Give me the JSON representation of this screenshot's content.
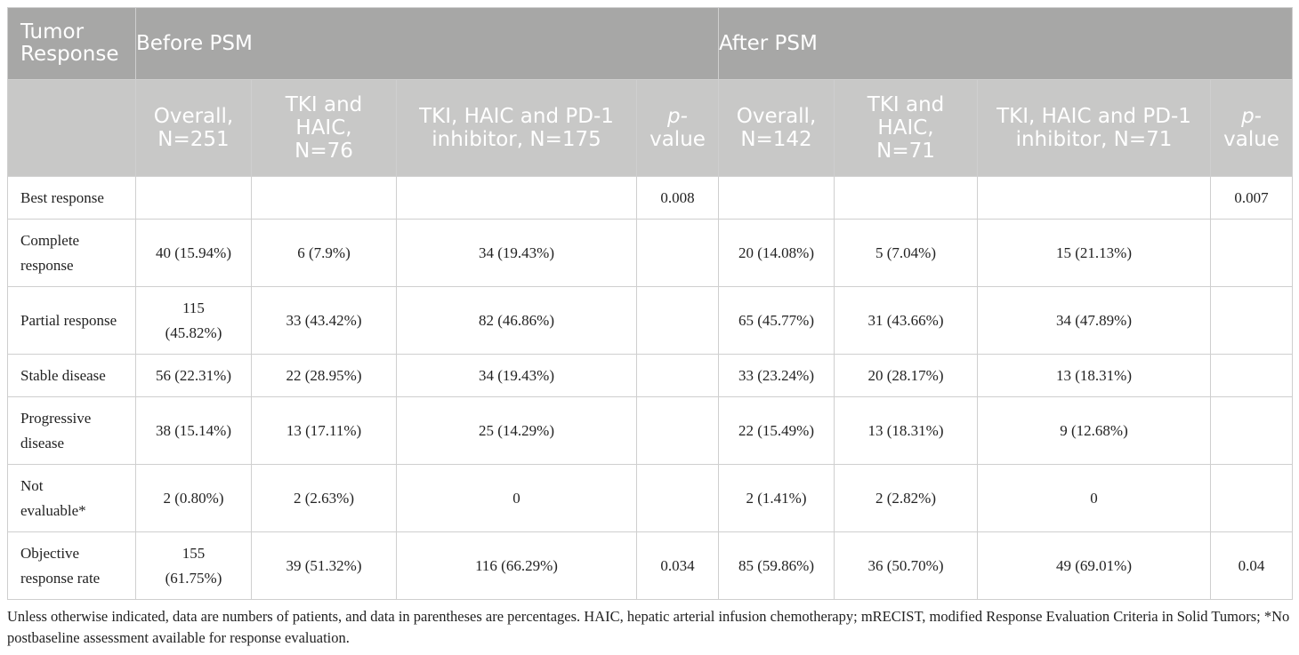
{
  "header": {
    "corner_label": "Tumor Response",
    "group_before": "Before PSM",
    "group_after": "After PSM",
    "cols_before": {
      "overall": "Overall, N=251",
      "tki_haic": "TKI and HAIC, N=76",
      "tki_haic_pd1": "TKI, HAIC and PD-1 inhibitor, N=175",
      "p_italic": "p-",
      "p_rest": "value"
    },
    "cols_after": {
      "overall": "Overall, N=142",
      "tki_haic": "TKI and HAIC, N=71",
      "tki_haic_pd1": "TKI, HAIC and PD-1 inhibitor, N=71",
      "p_italic": "p-",
      "p_rest": "value"
    }
  },
  "rows": [
    {
      "label": "Best response",
      "b_overall": "",
      "b_tki": "",
      "b_pd1": "",
      "b_p": "0.008",
      "a_overall": "",
      "a_tki": "",
      "a_pd1": "",
      "a_p": "0.007"
    },
    {
      "label": "Complete response",
      "b_overall": "40 (15.94%)",
      "b_tki": "6 (7.9%)",
      "b_pd1": "34 (19.43%)",
      "b_p": "",
      "a_overall": "20 (14.08%)",
      "a_tki": "5 (7.04%)",
      "a_pd1": "15 (21.13%)",
      "a_p": ""
    },
    {
      "label": "Partial response",
      "b_overall": "115 (45.82%)",
      "b_tki": "33 (43.42%)",
      "b_pd1": "82 (46.86%)",
      "b_p": "",
      "a_overall": "65 (45.77%)",
      "a_tki": "31 (43.66%)",
      "a_pd1": "34 (47.89%)",
      "a_p": ""
    },
    {
      "label": "Stable disease",
      "b_overall": "56 (22.31%)",
      "b_tki": "22 (28.95%)",
      "b_pd1": "34 (19.43%)",
      "b_p": "",
      "a_overall": "33 (23.24%)",
      "a_tki": "20 (28.17%)",
      "a_pd1": "13 (18.31%)",
      "a_p": ""
    },
    {
      "label": "Progressive disease",
      "b_overall": "38 (15.14%)",
      "b_tki": "13 (17.11%)",
      "b_pd1": "25 (14.29%)",
      "b_p": "",
      "a_overall": "22 (15.49%)",
      "a_tki": "13 (18.31%)",
      "a_pd1": "9 (12.68%)",
      "a_p": ""
    },
    {
      "label": "Not evaluable*",
      "b_overall": "2 (0.80%)",
      "b_tki": "2 (2.63%)",
      "b_pd1": "0",
      "b_p": "",
      "a_overall": "2 (1.41%)",
      "a_tki": "2 (2.82%)",
      "a_pd1": "0",
      "a_p": ""
    },
    {
      "label": "Objective response rate",
      "b_overall": "155 (61.75%)",
      "b_tki": "39 (51.32%)",
      "b_pd1": "116 (66.29%)",
      "b_p": "0.034",
      "a_overall": "85 (59.86%)",
      "a_tki": "36 (50.70%)",
      "a_pd1": "49 (69.01%)",
      "a_p": "0.04"
    }
  ],
  "footnote": "Unless otherwise indicated, data are numbers of patients, and data in parentheses are percentages. HAIC, hepatic arterial infusion chemotherapy; mRECIST, modified Response Evaluation Criteria in Solid Tumors; *No postbaseline assessment available for response evaluation.",
  "colors": {
    "header_dark": "#a7a7a6",
    "header_light": "#c8c8c7",
    "border": "#cfcfcf"
  }
}
